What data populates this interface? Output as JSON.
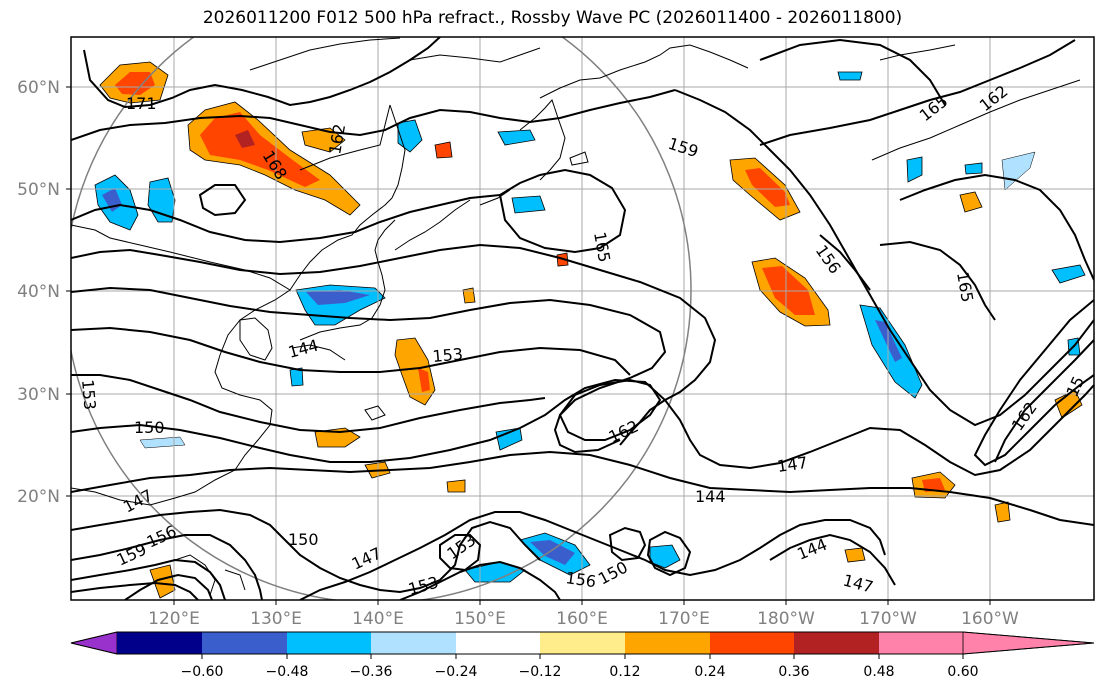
{
  "map": {
    "title": "2026011200 F012 500 hPa refract., Rossby Wave PC (2026011400 - 2026011800)",
    "lat_ticks": [
      "20°N",
      "30°N",
      "40°N",
      "50°N",
      "60°N"
    ],
    "lon_ticks": [
      "120°E",
      "130°E",
      "140°E",
      "150°E",
      "160°E",
      "170°E",
      "180°W",
      "170°W",
      "160°W"
    ],
    "extent": {
      "lon_min": 110,
      "lon_max": 210,
      "lat_min": 10,
      "lat_max": 65
    },
    "contour_labels": [
      "171",
      "168",
      "165",
      "162",
      "159",
      "156",
      "153",
      "150",
      "147",
      "144",
      "165",
      "162",
      "159",
      "156",
      "153",
      "150",
      "147",
      "144",
      "162",
      "165",
      "153",
      "150",
      "147",
      "156",
      "153",
      "147",
      "144",
      "162",
      "15"
    ],
    "colorbar": {
      "tick_labels": [
        "−0.60",
        "−0.48",
        "−0.36",
        "−0.24",
        "−0.12",
        "0.12",
        "0.24",
        "0.36",
        "0.48",
        "0.60"
      ],
      "colors": [
        "#9932CC",
        "#00008B",
        "#3A5FCD",
        "#00BFFF",
        "#B0E2FF",
        "#FFFFFF",
        "#FFEC8B",
        "#FFA500",
        "#FF4500",
        "#B22222",
        "#FF82AB"
      ]
    },
    "colors": {
      "grid": "#A9A9A9",
      "contour": "#000000",
      "circle": "#808080",
      "coast": "#000000"
    }
  }
}
